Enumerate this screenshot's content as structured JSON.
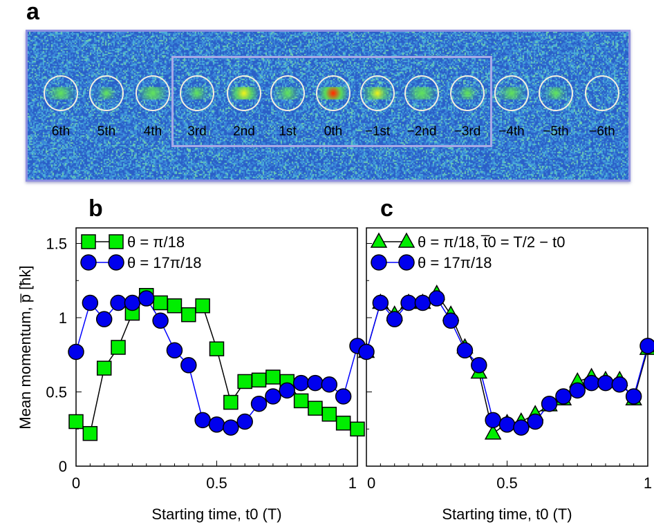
{
  "panel_a": {
    "letter": "a",
    "orders": [
      "6th",
      "5th",
      "4th",
      "3rd",
      "2nd",
      "1st",
      "0th",
      "−1st",
      "−2nd",
      "−3rd",
      "−4th",
      "−5th",
      "−6th"
    ]
  },
  "chart_data": [
    {
      "panel": "b",
      "type": "line",
      "xlabel": "Starting time, t0 (T)",
      "ylabel": "Mean momentum, p̅ [ħk]",
      "xlim": [
        0,
        1
      ],
      "ylim": [
        0,
        1.6
      ],
      "xticks": [
        "0",
        "0.5",
        "1"
      ],
      "yticks": [
        "0",
        "0.5",
        "1",
        "1.5"
      ],
      "legend_position": "top-left",
      "x": [
        0,
        0.05,
        0.1,
        0.15,
        0.2,
        0.25,
        0.3,
        0.35,
        0.4,
        0.45,
        0.5,
        0.55,
        0.6,
        0.65,
        0.7,
        0.75,
        0.8,
        0.85,
        0.9,
        0.95,
        1.0
      ],
      "series": [
        {
          "name": "θ = π/18",
          "marker": "square",
          "color": "#00ee00",
          "line_color": "#000000",
          "values": [
            0.3,
            0.22,
            0.66,
            0.8,
            1.03,
            1.15,
            1.1,
            1.08,
            1.02,
            1.08,
            0.79,
            0.43,
            0.57,
            0.58,
            0.6,
            0.57,
            0.44,
            0.39,
            0.35,
            0.29,
            0.25
          ]
        },
        {
          "name": "θ = 17π/18",
          "marker": "circle",
          "color": "#0000ee",
          "line_color": "#0000ff",
          "values": [
            0.77,
            1.1,
            0.99,
            1.1,
            1.1,
            1.13,
            0.98,
            0.78,
            0.68,
            0.31,
            0.28,
            0.26,
            0.3,
            0.42,
            0.47,
            0.51,
            0.56,
            0.56,
            0.55,
            0.47,
            0.81
          ]
        }
      ]
    },
    {
      "panel": "c",
      "type": "line",
      "xlabel": "Starting time, t0 (T)",
      "xlim": [
        0,
        1
      ],
      "ylim": [
        0,
        1.6
      ],
      "xticks": [
        "0",
        "0.5",
        "1"
      ],
      "legend_position": "top-left",
      "x": [
        0,
        0.05,
        0.1,
        0.15,
        0.2,
        0.25,
        0.3,
        0.35,
        0.4,
        0.45,
        0.5,
        0.55,
        0.6,
        0.65,
        0.7,
        0.75,
        0.8,
        0.85,
        0.9,
        0.95,
        1.0
      ],
      "series": [
        {
          "name": "θ = π/18, t̅0 = T/2 − t0",
          "marker": "triangle",
          "color": "#00ee00",
          "line_color": "#000000",
          "values": [
            0.77,
            1.1,
            1.02,
            1.1,
            1.1,
            1.16,
            1.02,
            0.8,
            0.63,
            0.22,
            0.29,
            0.3,
            0.35,
            0.41,
            0.45,
            0.57,
            0.6,
            0.58,
            0.58,
            0.45,
            0.79
          ]
        },
        {
          "name": "θ = 17π/18",
          "marker": "circle",
          "color": "#0000ee",
          "line_color": "#0000ff",
          "values": [
            0.77,
            1.1,
            0.99,
            1.1,
            1.1,
            1.13,
            0.98,
            0.78,
            0.68,
            0.31,
            0.28,
            0.26,
            0.3,
            0.42,
            0.47,
            0.51,
            0.56,
            0.56,
            0.55,
            0.47,
            0.81
          ]
        }
      ]
    }
  ]
}
